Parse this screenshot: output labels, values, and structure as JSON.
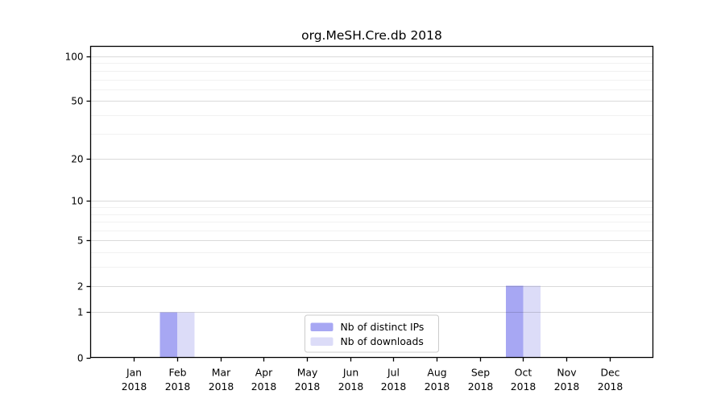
{
  "figure": {
    "title": "org.MeSH.Cre.db 2018"
  },
  "chart_data": {
    "type": "bar",
    "title": "org.MeSH.Cre.db 2018",
    "categories": [
      "Jan",
      "Feb",
      "Mar",
      "Apr",
      "May",
      "Jun",
      "Jul",
      "Aug",
      "Sep",
      "Oct",
      "Nov",
      "Dec"
    ],
    "category_year": "2018",
    "series": [
      {
        "name": "Nb of distinct IPs",
        "color": "#a7a7f3",
        "values": [
          0,
          1,
          0,
          0,
          0,
          0,
          0,
          0,
          0,
          2,
          0,
          0
        ]
      },
      {
        "name": "Nb of downloads",
        "color": "#dcdcf8",
        "values": [
          0,
          1,
          0,
          0,
          0,
          0,
          0,
          0,
          0,
          2,
          0,
          0
        ]
      }
    ],
    "xlabel": "",
    "ylabel": "",
    "y_scale": "log1p",
    "y_ticks_major": [
      0,
      1,
      2,
      5,
      10,
      20,
      50,
      100
    ],
    "y_ticks_minor": [
      3,
      4,
      6,
      7,
      8,
      9,
      30,
      40,
      60,
      70,
      80,
      90
    ],
    "ylim": [
      0,
      117
    ],
    "grid": true,
    "legend": {
      "position": "lower center",
      "entries": [
        "Nb of distinct IPs",
        "Nb of downloads"
      ]
    }
  },
  "colors": {
    "background": "#ffffff",
    "bar_distinct_ips": "#a7a7f3",
    "bar_downloads": "#dcdcf8",
    "grid_major": "#dcdcdc",
    "grid_minor": "#f2f2f2",
    "axis": "#000000",
    "legend_border": "#cccccc",
    "legend_background": "#ffffff"
  }
}
